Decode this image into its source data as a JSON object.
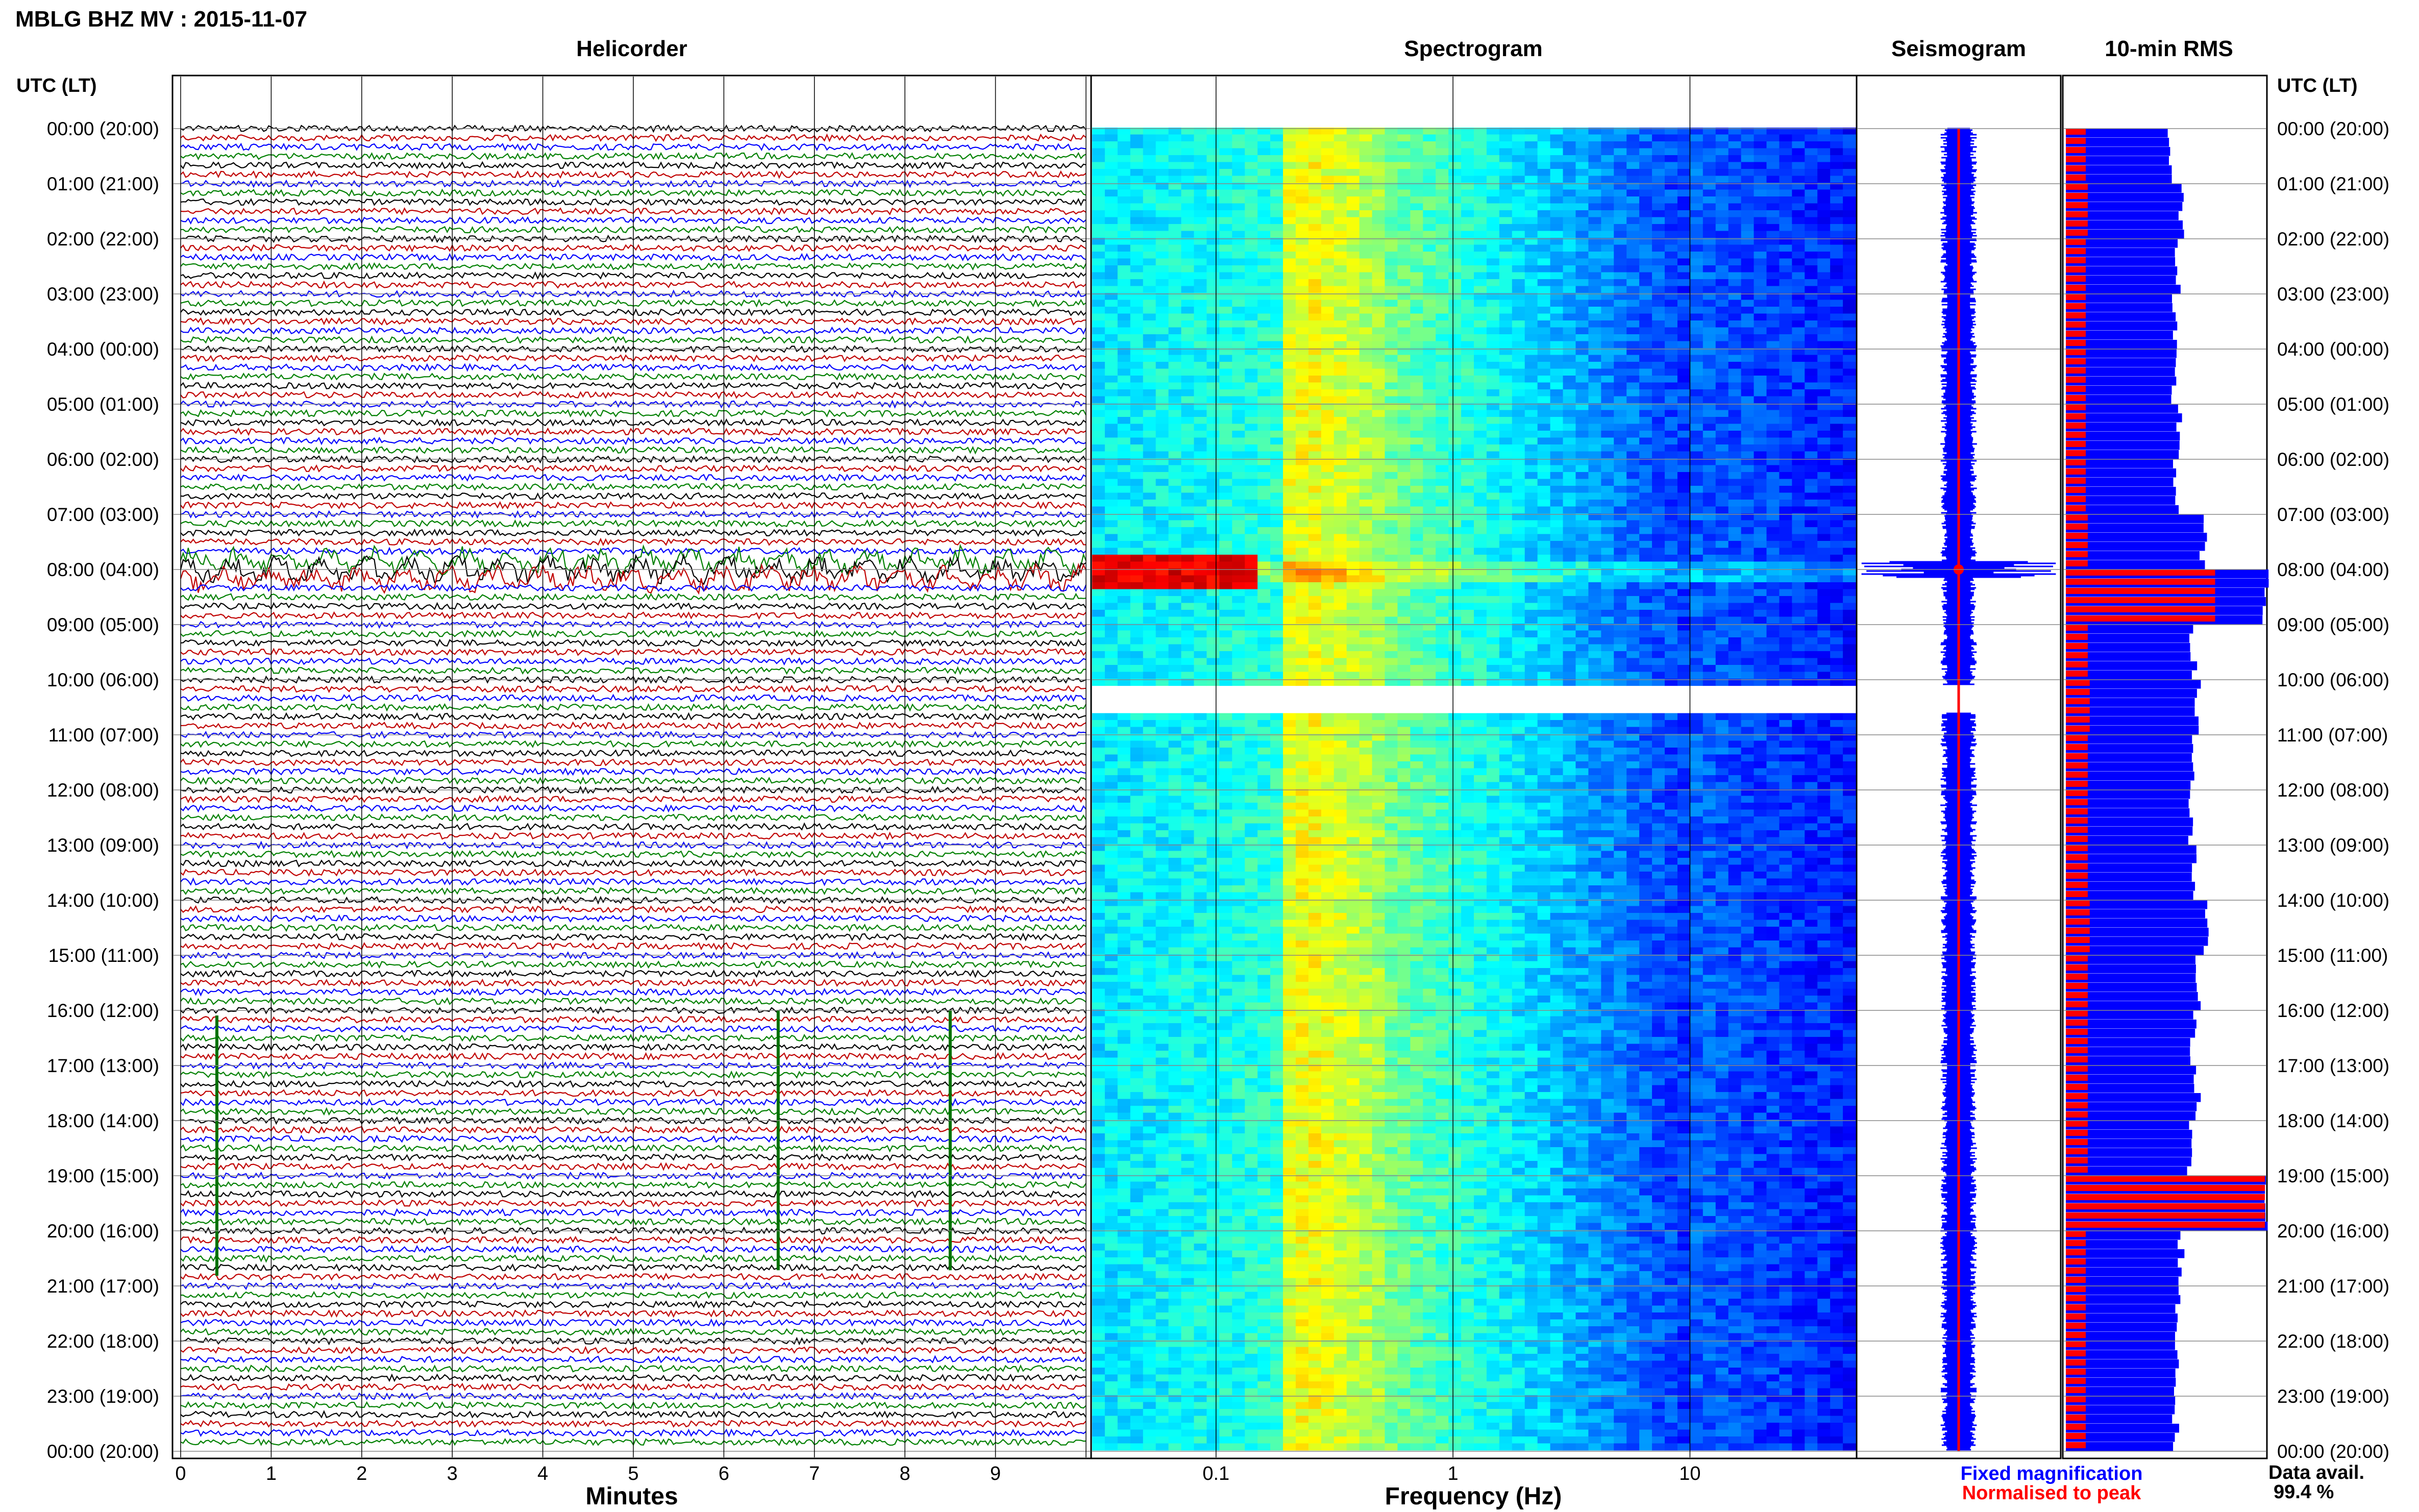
{
  "header": {
    "title": "MBLG BHZ MV : 2015-11-07"
  },
  "panels": {
    "helicorder": "Helicorder",
    "spectrogram": "Spectrogram",
    "seismogram": "Seismogram",
    "rms": "10-min RMS"
  },
  "axis_labels": {
    "left_header": "UTC (LT)",
    "right_header": "UTC (LT)",
    "x_minutes": "Minutes",
    "x_frequency": "Frequency (Hz)"
  },
  "legend": {
    "fixed": "Fixed magnification",
    "normalised": "Normalised to peak",
    "fixed_color": "#0000ff",
    "normalised_color": "#ff0000"
  },
  "data_availability": {
    "label": "Data avail.",
    "value": "99.4 %"
  },
  "chart_data": [
    {
      "type": "line",
      "title": "Helicorder",
      "xlabel": "Minutes",
      "ylabel": "UTC (LT)",
      "x_ticks": [
        "0",
        "1",
        "2",
        "3",
        "4",
        "5",
        "6",
        "7",
        "8",
        "9"
      ],
      "xlim": [
        0,
        10
      ],
      "y_ticks": [
        "00:00 (20:00)",
        "01:00 (21:00)",
        "02:00 (22:00)",
        "03:00 (23:00)",
        "04:00 (00:00)",
        "05:00 (01:00)",
        "06:00 (02:00)",
        "07:00 (03:00)",
        "08:00 (04:00)",
        "09:00 (05:00)",
        "10:00 (06:00)",
        "11:00 (07:00)",
        "12:00 (08:00)",
        "13:00 (09:00)",
        "14:00 (10:00)",
        "15:00 (11:00)",
        "16:00 (12:00)",
        "17:00 (13:00)",
        "18:00 (14:00)",
        "19:00 (15:00)",
        "20:00 (16:00)",
        "21:00 (17:00)",
        "22:00 (18:00)",
        "23:00 (19:00)",
        "00:00 (20:00)"
      ],
      "trace_colors": [
        "#000000",
        "#c00000",
        "#0000ff",
        "#008000"
      ],
      "events": [
        {
          "name": "signal at 07:40-08:20 UTC",
          "start_hour": 7.7,
          "end_hour": 8.3
        },
        {
          "name": "spike",
          "minute": 0.4,
          "hour": 18.5
        },
        {
          "name": "spike",
          "minute": 6.6,
          "hour": 18.4
        },
        {
          "name": "spike",
          "minute": 8.5,
          "hour": 18.4
        }
      ]
    },
    {
      "type": "heatmap",
      "title": "Spectrogram",
      "xlabel": "Frequency (Hz)",
      "x_scale": "log",
      "xlim": [
        0.03,
        50
      ],
      "x_ticks": [
        "0.1",
        "1",
        "10"
      ],
      "colormap": "jet",
      "data_gap_hours": [
        10.1,
        10.6
      ],
      "bright_band_hz": [
        0.2,
        0.5
      ],
      "event_hour": 8.0
    },
    {
      "type": "line",
      "title": "Seismogram",
      "color": "#0000ff",
      "peak_marker_hour": 8.0,
      "peak_color": "#ff0000"
    },
    {
      "type": "bar",
      "title": "10-min RMS",
      "orientation": "horizontal",
      "series": [
        {
          "name": "Fixed magnification",
          "color": "#0000ff",
          "hourly_values": [
            0.52,
            0.58,
            0.56,
            0.54,
            0.54,
            0.57,
            0.55,
            0.69,
            1.0,
            0.64,
            0.66,
            0.64,
            0.62,
            0.64,
            0.7,
            0.66,
            0.64,
            0.66,
            0.62,
            1.0,
            0.58,
            0.56,
            0.56,
            0.55
          ]
        },
        {
          "name": "Normalised to peak",
          "color": "#ff0000",
          "hourly_values": [
            0.1,
            0.11,
            0.1,
            0.1,
            0.1,
            0.1,
            0.1,
            0.11,
            0.75,
            0.11,
            0.12,
            0.11,
            0.11,
            0.11,
            0.12,
            0.11,
            0.11,
            0.11,
            0.11,
            1.0,
            0.1,
            0.1,
            0.1,
            0.1
          ]
        }
      ]
    }
  ]
}
